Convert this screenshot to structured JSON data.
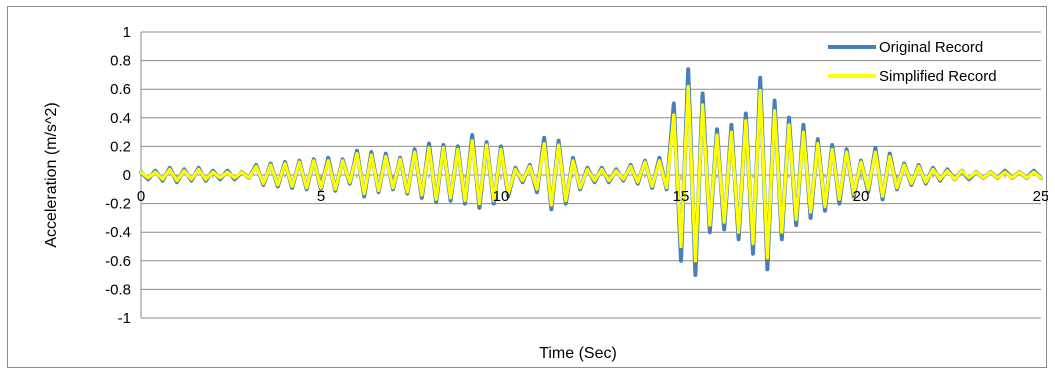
{
  "chart_data": {
    "type": "line",
    "xlabel": "Time (Sec)",
    "ylabel": "Acceleration (m/s^2)",
    "xlim": [
      0,
      25
    ],
    "ylim": [
      -1,
      1
    ],
    "x_ticks": [
      "0",
      "5",
      "10",
      "15",
      "20",
      "25"
    ],
    "y_ticks": [
      "1",
      "0.8",
      "0.6",
      "0.4",
      "0.2",
      "0",
      "-0.2",
      "-0.4",
      "-0.6",
      "-0.8",
      "-1"
    ],
    "grid": true,
    "legend_position": "top-right",
    "series": [
      {
        "name": "Original Record",
        "color": "#4a7ebb",
        "x": [
          0.0,
          0.2,
          0.4,
          0.6,
          0.8,
          1.0,
          1.2,
          1.4,
          1.6,
          1.8,
          2.0,
          2.2,
          2.4,
          2.6,
          2.8,
          3.0,
          3.2,
          3.4,
          3.6,
          3.8,
          4.0,
          4.2,
          4.4,
          4.6,
          4.8,
          5.0,
          5.2,
          5.4,
          5.6,
          5.8,
          6.0,
          6.2,
          6.4,
          6.6,
          6.8,
          7.0,
          7.2,
          7.4,
          7.6,
          7.8,
          8.0,
          8.2,
          8.4,
          8.6,
          8.8,
          9.0,
          9.2,
          9.4,
          9.6,
          9.8,
          10.0,
          10.2,
          10.4,
          10.6,
          10.8,
          11.0,
          11.2,
          11.4,
          11.6,
          11.8,
          12.0,
          12.2,
          12.4,
          12.6,
          12.8,
          13.0,
          13.2,
          13.4,
          13.6,
          13.8,
          14.0,
          14.2,
          14.4,
          14.6,
          14.8,
          15.0,
          15.2,
          15.4,
          15.6,
          15.8,
          16.0,
          16.2,
          16.4,
          16.6,
          16.8,
          17.0,
          17.2,
          17.4,
          17.6,
          17.8,
          18.0,
          18.2,
          18.4,
          18.6,
          18.8,
          19.0,
          19.2,
          19.4,
          19.6,
          19.8,
          20.0,
          20.2,
          20.4,
          20.6,
          20.8,
          21.0,
          21.2,
          21.4,
          21.6,
          21.8,
          22.0,
          22.2,
          22.4,
          22.6,
          22.8,
          23.0,
          23.2,
          23.4,
          23.6,
          23.8,
          24.0,
          24.2,
          24.4,
          24.6,
          24.8,
          25.0
        ],
        "values": [
          0.02,
          -0.03,
          0.03,
          -0.04,
          0.05,
          -0.05,
          0.04,
          -0.04,
          0.05,
          -0.04,
          0.03,
          -0.03,
          0.03,
          -0.03,
          0.02,
          -0.02,
          0.07,
          -0.07,
          0.08,
          -0.08,
          0.09,
          -0.09,
          0.1,
          -0.1,
          0.11,
          -0.1,
          0.12,
          -0.11,
          0.11,
          -0.06,
          0.17,
          -0.15,
          0.16,
          -0.12,
          0.15,
          -0.1,
          0.12,
          -0.13,
          0.18,
          -0.16,
          0.22,
          -0.19,
          0.21,
          -0.18,
          0.2,
          -0.2,
          0.28,
          -0.23,
          0.23,
          -0.2,
          0.2,
          -0.15,
          0.05,
          -0.05,
          0.07,
          -0.12,
          0.26,
          -0.24,
          0.24,
          -0.2,
          0.12,
          -0.1,
          0.05,
          -0.05,
          0.05,
          -0.05,
          0.04,
          -0.04,
          0.07,
          -0.06,
          0.1,
          -0.09,
          0.12,
          -0.1,
          0.5,
          -0.6,
          0.74,
          -0.7,
          0.57,
          -0.4,
          0.32,
          -0.38,
          0.35,
          -0.45,
          0.43,
          -0.55,
          0.68,
          -0.66,
          0.52,
          -0.45,
          0.4,
          -0.35,
          0.35,
          -0.3,
          0.25,
          -0.25,
          0.21,
          -0.2,
          0.18,
          -0.15,
          0.1,
          -0.12,
          0.19,
          -0.17,
          0.15,
          -0.1,
          0.08,
          -0.07,
          0.07,
          -0.06,
          0.05,
          -0.04,
          0.04,
          -0.03,
          0.03,
          -0.03,
          0.02,
          -0.02,
          0.02,
          -0.02,
          0.03,
          -0.02,
          0.02,
          -0.02,
          0.03,
          -0.02
        ]
      },
      {
        "name": "Simplified Record",
        "color": "#ffff00",
        "x": [
          0.0,
          0.2,
          0.4,
          0.6,
          0.8,
          1.0,
          1.2,
          1.4,
          1.6,
          1.8,
          2.0,
          2.2,
          2.4,
          2.6,
          2.8,
          3.0,
          3.2,
          3.4,
          3.6,
          3.8,
          4.0,
          4.2,
          4.4,
          4.6,
          4.8,
          5.0,
          5.2,
          5.4,
          5.6,
          5.8,
          6.0,
          6.2,
          6.4,
          6.6,
          6.8,
          7.0,
          7.2,
          7.4,
          7.6,
          7.8,
          8.0,
          8.2,
          8.4,
          8.6,
          8.8,
          9.0,
          9.2,
          9.4,
          9.6,
          9.8,
          10.0,
          10.2,
          10.4,
          10.6,
          10.8,
          11.0,
          11.2,
          11.4,
          11.6,
          11.8,
          12.0,
          12.2,
          12.4,
          12.6,
          12.8,
          13.0,
          13.2,
          13.4,
          13.6,
          13.8,
          14.0,
          14.2,
          14.4,
          14.6,
          14.8,
          15.0,
          15.2,
          15.4,
          15.6,
          15.8,
          16.0,
          16.2,
          16.4,
          16.6,
          16.8,
          17.0,
          17.2,
          17.4,
          17.6,
          17.8,
          18.0,
          18.2,
          18.4,
          18.6,
          18.8,
          19.0,
          19.2,
          19.4,
          19.6,
          19.8,
          20.0,
          20.2,
          20.4,
          20.6,
          20.8,
          21.0,
          21.2,
          21.4,
          21.6,
          21.8,
          22.0,
          22.2,
          22.4,
          22.6,
          22.8,
          23.0,
          23.2,
          23.4,
          23.6,
          23.8,
          24.0,
          24.2,
          24.4,
          24.6,
          24.8,
          25.0
        ],
        "values": [
          0.02,
          -0.02,
          0.02,
          -0.03,
          0.04,
          -0.04,
          0.03,
          -0.03,
          0.04,
          -0.03,
          0.02,
          -0.02,
          0.02,
          -0.02,
          0.02,
          -0.02,
          0.06,
          -0.06,
          0.07,
          -0.07,
          0.08,
          -0.08,
          0.09,
          -0.09,
          0.1,
          -0.09,
          0.1,
          -0.1,
          0.1,
          -0.05,
          0.15,
          -0.13,
          0.14,
          -0.11,
          0.13,
          -0.09,
          0.11,
          -0.12,
          0.16,
          -0.14,
          0.19,
          -0.17,
          0.19,
          -0.16,
          0.18,
          -0.18,
          0.24,
          -0.2,
          0.21,
          -0.18,
          0.18,
          -0.13,
          0.04,
          -0.04,
          0.06,
          -0.1,
          0.22,
          -0.21,
          0.21,
          -0.18,
          0.1,
          -0.09,
          0.04,
          -0.04,
          0.04,
          -0.04,
          0.03,
          -0.03,
          0.06,
          -0.05,
          0.09,
          -0.08,
          0.1,
          -0.09,
          0.42,
          -0.5,
          0.62,
          -0.6,
          0.49,
          -0.35,
          0.28,
          -0.33,
          0.3,
          -0.4,
          0.38,
          -0.48,
          0.59,
          -0.58,
          0.45,
          -0.4,
          0.35,
          -0.31,
          0.3,
          -0.26,
          0.22,
          -0.22,
          0.18,
          -0.17,
          0.16,
          -0.13,
          0.09,
          -0.1,
          0.16,
          -0.15,
          0.13,
          -0.09,
          0.07,
          -0.06,
          0.06,
          -0.05,
          0.04,
          -0.03,
          0.03,
          -0.03,
          0.03,
          -0.02,
          0.02,
          -0.02,
          0.02,
          -0.02,
          0.02,
          -0.02,
          0.02,
          -0.02,
          0.02,
          -0.02
        ]
      }
    ]
  }
}
